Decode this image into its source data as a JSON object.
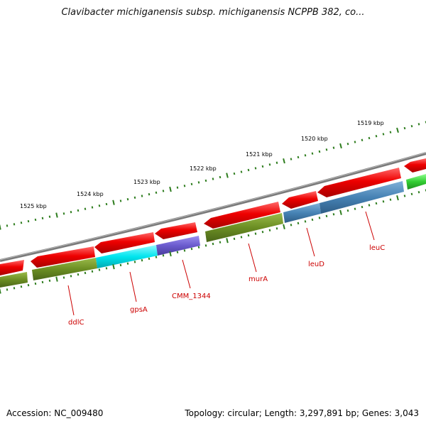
{
  "title": "Clavibacter michiganensis subsp. michiganensis NCPPB 382, co...",
  "footer": {
    "accession": "Accession: NC_009480",
    "summary": "Topology: circular; Length: 3,297,891 bp; Genes: 3,043"
  },
  "scale_labels": [
    "1525 kbp",
    "1524 kbp",
    "1523 kbp",
    "1522 kbp",
    "1521 kbp",
    "1520 kbp",
    "1519 kbp"
  ],
  "gene_labels": [
    "ddlC",
    "gpsA",
    "CMM_1344",
    "murA",
    "leuD",
    "leuC"
  ],
  "colors": {
    "backbone": "#7a7a7a",
    "cds_red": "#ee0000",
    "olive": "#6b8e23",
    "cyan": "#00e5ee",
    "purple": "#6a5acd",
    "steelblue": "#4682b4",
    "green": "#32cd32",
    "tick": "#2e7d1e",
    "label": "#cc0000"
  }
}
